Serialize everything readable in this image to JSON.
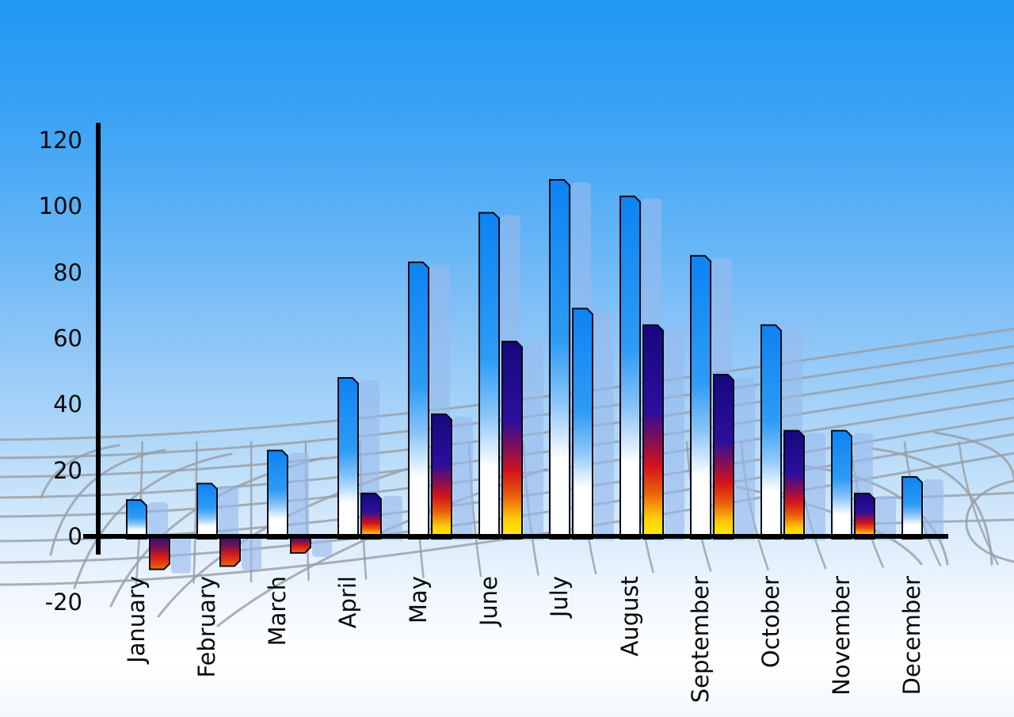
{
  "chart_data": {
    "type": "bar",
    "title": "",
    "xlabel": "",
    "ylabel": "",
    "categories": [
      "January",
      "February",
      "March",
      "April",
      "May",
      "June",
      "July",
      "August",
      "September",
      "October",
      "November",
      "December"
    ],
    "series": [
      {
        "name": "primary-blue-bars",
        "values": [
          11,
          16,
          26,
          48,
          83,
          98,
          108,
          103,
          85,
          64,
          32,
          18
        ]
      },
      {
        "name": "secondary-heat-bars",
        "values": [
          -10,
          -9,
          -5,
          13,
          37,
          59,
          69,
          64,
          49,
          32,
          13,
          null
        ],
        "point_styles": [
          "heat",
          "heat",
          "heat",
          "heat",
          "heat",
          "heat",
          "blue",
          "heat",
          "heat",
          "heat",
          "heat",
          null
        ]
      }
    ],
    "ylim": [
      -20,
      120
    ],
    "y_ticks": [
      120,
      100,
      80,
      60,
      40,
      20,
      0,
      -20
    ],
    "legend_position": "none",
    "grid": "perspective-floor-mesh",
    "colors": {
      "sky_top": "#1f98f4",
      "sky_bottom": "#f3f8fd",
      "bar_blue_top": "#0d83f3",
      "bar_blue_mid": "#2e9cf5",
      "bar_fade_white": "#ffffff",
      "heat_navy": "#1d0b90",
      "heat_red": "#d4131b",
      "heat_orange": "#ea5c0b",
      "heat_yellow": "#fdf403",
      "neg_navy": "#2b1173",
      "neg_red": "#cc1a1e",
      "neg_orange": "#ef7009",
      "echo_bar": "rgba(151,186,236,0.62)",
      "grid_line": "#979da5",
      "axis": "#000000",
      "label_text": "#0a0a0a"
    }
  }
}
